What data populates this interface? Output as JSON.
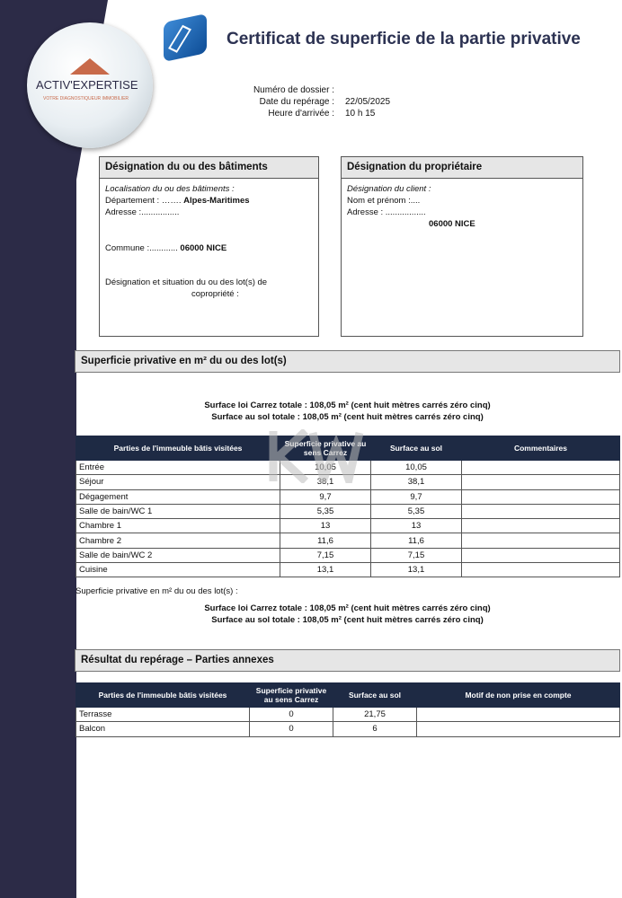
{
  "logo": {
    "brand": "ACTIV'EXPERTISE",
    "tagline": "VOTRE DIAGNOSTIQUEUR IMMOBILIER"
  },
  "title": "Certificat de superficie de la partie privative",
  "meta": [
    {
      "k": "Numéro de dossier :",
      "v": ""
    },
    {
      "k": "Date du repérage :",
      "v": "22/05/2025"
    },
    {
      "k": "Heure d'arrivée :",
      "v": "10 h 15"
    }
  ],
  "building": {
    "header": "Désignation du ou des bâtiments",
    "loc_label": "Localisation du ou des bâtiments :",
    "dept_label": "Département : …….",
    "dept": "Alpes-Maritimes",
    "address": "Adresse :................",
    "commune_label": "Commune :............",
    "commune": "06000 NICE",
    "lots": "Désignation et situation du ou des lot(s) de",
    "lots2": "copropriété :"
  },
  "owner": {
    "header": "Désignation du propriétaire",
    "client_label": "Désignation du client :",
    "name": "Nom et prénom :....",
    "address": "Adresse : .................",
    "city": "06000 NICE"
  },
  "section1": "Superficie privative en m² du ou des lot(s)",
  "totals": {
    "carrez": "Surface loi Carrez totale : 108,05 m² (cent huit mètres carrés zéro cinq)",
    "sol": "Surface au sol totale : 108,05 m² (cent huit mètres carrés zéro cinq)"
  },
  "table1": {
    "headers": [
      "Parties de l'immeuble bâtis visitées",
      "Superficie privative au sens Carrez",
      "Surface au sol",
      "Commentaires"
    ],
    "rows": [
      [
        "Entrée",
        "10,05",
        "10,05",
        ""
      ],
      [
        "Séjour",
        "38,1",
        "38,1",
        ""
      ],
      [
        "Dégagement",
        "9,7",
        "9,7",
        ""
      ],
      [
        "Salle de bain/WC 1",
        "5,35",
        "5,35",
        ""
      ],
      [
        "Chambre 1",
        "13",
        "13",
        ""
      ],
      [
        "Chambre 2",
        "11,6",
        "11,6",
        ""
      ],
      [
        "Salle de bain/WC 2",
        "7,15",
        "7,15",
        ""
      ],
      [
        "Cuisine",
        "13,1",
        "13,1",
        ""
      ]
    ]
  },
  "note": "Superficie privative en m² du ou des lot(s) :",
  "section2": "Résultat du repérage – Parties annexes",
  "table2": {
    "headers": [
      "Parties de l'immeuble bâtis visitées",
      "Superficie privative au sens Carrez",
      "Surface au sol",
      "Motif de non prise en compte"
    ],
    "rows": [
      [
        "Terrasse",
        "0",
        "21,75",
        ""
      ],
      [
        "Balcon",
        "0",
        "6",
        ""
      ]
    ]
  },
  "watermark": "KW"
}
